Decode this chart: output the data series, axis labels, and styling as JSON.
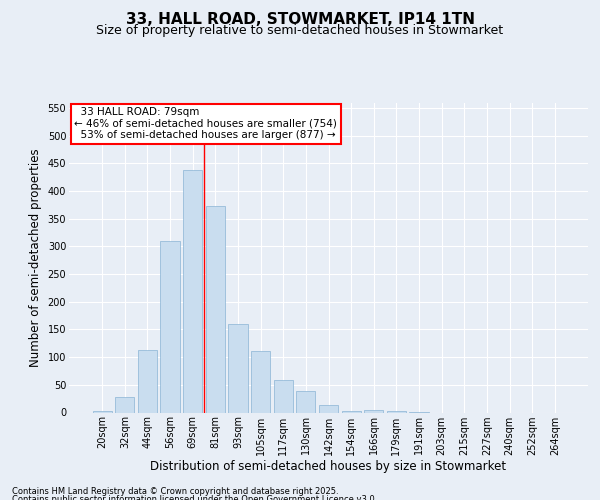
{
  "title": "33, HALL ROAD, STOWMARKET, IP14 1TN",
  "subtitle": "Size of property relative to semi-detached houses in Stowmarket",
  "xlabel": "Distribution of semi-detached houses by size in Stowmarket",
  "ylabel": "Number of semi-detached properties",
  "bar_labels": [
    "20sqm",
    "32sqm",
    "44sqm",
    "56sqm",
    "69sqm",
    "81sqm",
    "93sqm",
    "105sqm",
    "117sqm",
    "130sqm",
    "142sqm",
    "154sqm",
    "166sqm",
    "179sqm",
    "191sqm",
    "203sqm",
    "215sqm",
    "227sqm",
    "240sqm",
    "252sqm",
    "264sqm"
  ],
  "bar_values": [
    2,
    28,
    113,
    310,
    438,
    373,
    160,
    111,
    58,
    38,
    13,
    2,
    5,
    2,
    1,
    0,
    0,
    0,
    0,
    0,
    0
  ],
  "bar_color": "#c9ddef",
  "bar_edge_color": "#8ab4d4",
  "property_line_x": 4.5,
  "property_sqm": 79,
  "pct_smaller": 46,
  "count_smaller": 754,
  "pct_larger": 53,
  "count_larger": 877,
  "annotation_label": "33 HALL ROAD: 79sqm",
  "ylim": [
    0,
    560
  ],
  "yticks": [
    0,
    50,
    100,
    150,
    200,
    250,
    300,
    350,
    400,
    450,
    500,
    550
  ],
  "background_color": "#e8eef6",
  "fig_background_color": "#e8eef6",
  "grid_color": "#ffffff",
  "title_fontsize": 11,
  "subtitle_fontsize": 9,
  "axis_label_fontsize": 8.5,
  "tick_fontsize": 7,
  "footnote1": "Contains HM Land Registry data © Crown copyright and database right 2025.",
  "footnote2": "Contains public sector information licensed under the Open Government Licence v3.0."
}
